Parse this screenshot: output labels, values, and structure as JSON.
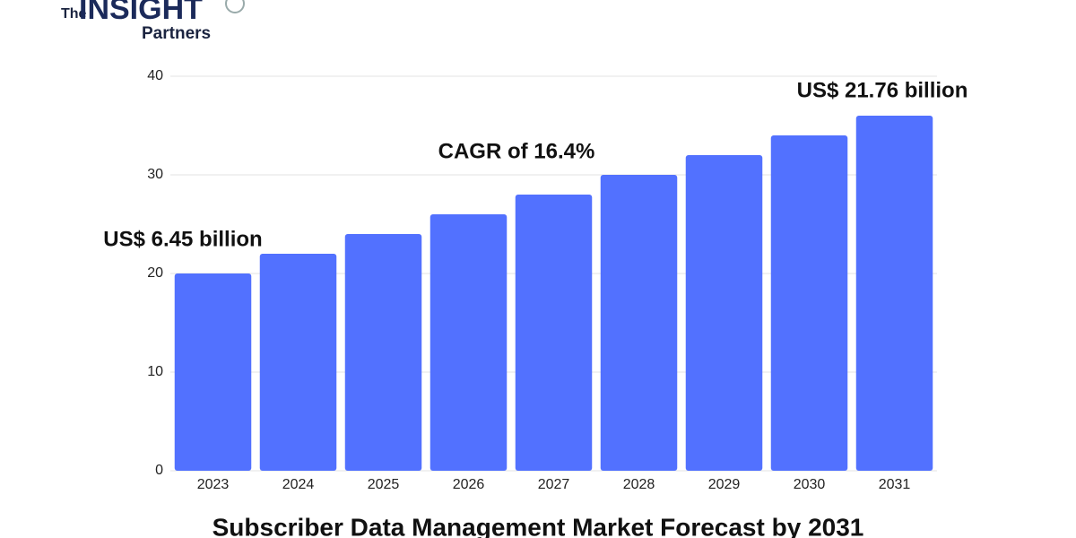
{
  "logo": {
    "small": "The",
    "main": "INSIGHT",
    "sub": "Partners"
  },
  "chart_data": {
    "type": "bar",
    "title": "Subscriber Data Management Market Forecast by 2031",
    "categories": [
      "2023",
      "2024",
      "2025",
      "2026",
      "2027",
      "2028",
      "2029",
      "2030",
      "2031"
    ],
    "values": [
      20,
      22,
      24,
      26,
      28,
      30,
      32,
      34,
      36
    ],
    "color": "#5271ff",
    "ylim": [
      0,
      40
    ],
    "yticks": [
      0,
      10,
      20,
      30,
      40
    ],
    "grid": true,
    "annotations": [
      "US$ 6.45 billion",
      "CAGR of 16.4%",
      "US$ 21.76 billion"
    ]
  }
}
